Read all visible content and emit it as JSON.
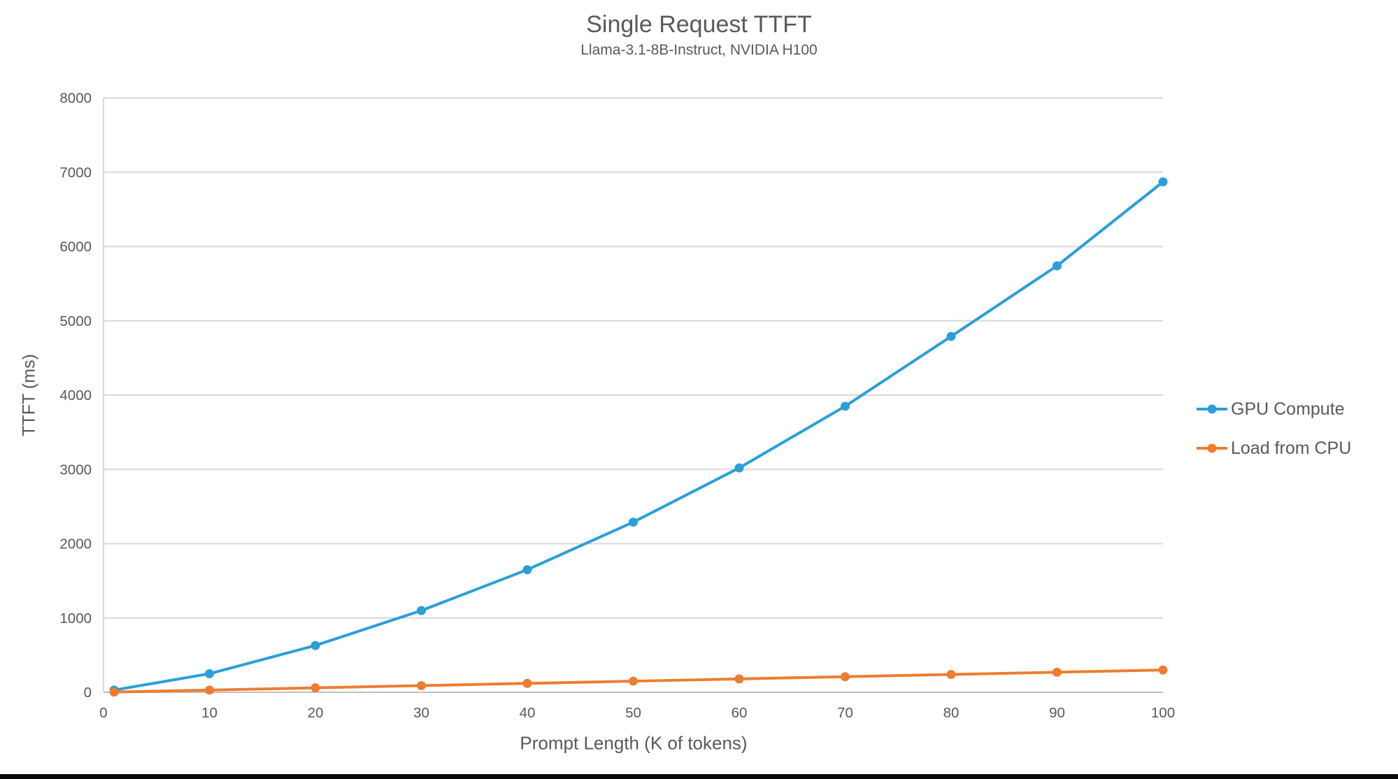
{
  "page": {
    "background": "#ffffff",
    "bottom_bar_color": "#0a0a0a"
  },
  "chart_data": {
    "type": "line",
    "title": "Single Request TTFT",
    "subtitle": "Llama-3.1-8B-Instruct, NVIDIA H100",
    "xlabel": "Prompt Length (K of tokens)",
    "ylabel": "TTFT (ms)",
    "xlim": [
      0,
      100
    ],
    "ylim": [
      0,
      8000
    ],
    "x_ticks": [
      0,
      10,
      20,
      30,
      40,
      50,
      60,
      70,
      80,
      90,
      100
    ],
    "y_ticks": [
      0,
      1000,
      2000,
      3000,
      4000,
      5000,
      6000,
      7000,
      8000
    ],
    "grid": true,
    "legend_position": "right",
    "x": [
      1,
      10,
      20,
      30,
      40,
      50,
      60,
      70,
      80,
      90,
      100
    ],
    "series": [
      {
        "name": "GPU Compute",
        "color": "#2A9FD8",
        "values": [
          30,
          250,
          630,
          1100,
          1650,
          2290,
          3020,
          3850,
          4790,
          5740,
          6870
        ]
      },
      {
        "name": "Load from CPU",
        "color": "#ED7D31",
        "values": [
          3,
          30,
          60,
          90,
          120,
          150,
          180,
          210,
          240,
          270,
          300
        ]
      }
    ],
    "text_color": "#595959",
    "gridline_color": "#D9D9D9",
    "axis_line_color": "#BFBFBF"
  }
}
